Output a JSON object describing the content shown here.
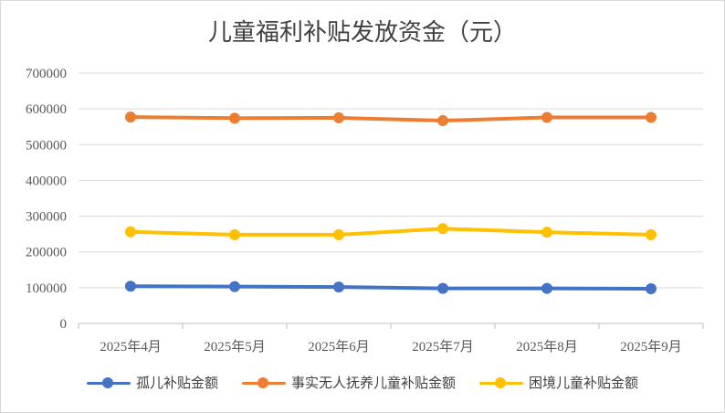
{
  "chart_data": {
    "type": "line",
    "title": "儿童福利补贴发放资金（元）",
    "categories": [
      "2025年4月",
      "2025年5月",
      "2025年6月",
      "2025年7月",
      "2025年8月",
      "2025年9月"
    ],
    "ylim": [
      0,
      700000
    ],
    "yticks": [
      0,
      100000,
      200000,
      300000,
      400000,
      500000,
      600000,
      700000
    ],
    "ytick_labels": [
      "0",
      "100000",
      "200000",
      "300000",
      "400000",
      "500000",
      "600000",
      "700000"
    ],
    "grid": true,
    "legend_position": "bottom",
    "series": [
      {
        "name": "孤儿补贴金额",
        "color": "#4472C4",
        "values": [
          104000,
          103000,
          102000,
          98000,
          98000,
          97000
        ]
      },
      {
        "name": "事实无人抚养儿童补贴金额",
        "color": "#ED7D31",
        "values": [
          577000,
          574000,
          575000,
          567000,
          576000,
          576000
        ]
      },
      {
        "name": "困境儿童补贴金额",
        "color": "#FFC000",
        "values": [
          256000,
          248000,
          248000,
          265000,
          255000,
          248000
        ]
      }
    ]
  }
}
